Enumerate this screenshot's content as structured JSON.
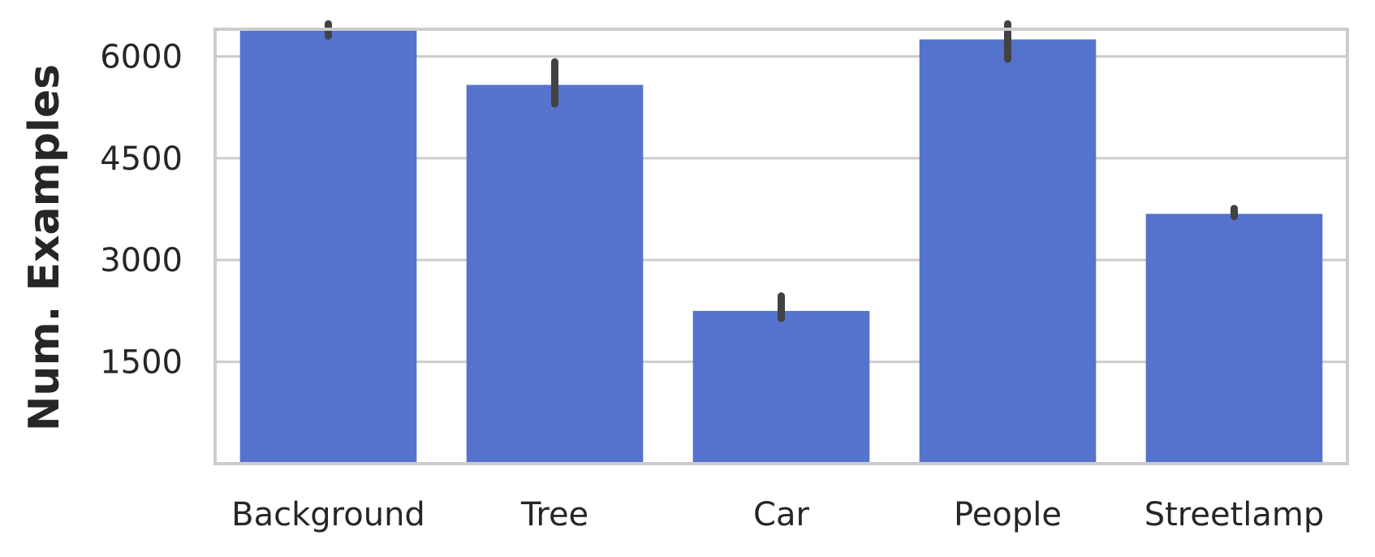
{
  "chart_data": {
    "type": "bar",
    "title": "",
    "xlabel": "",
    "ylabel": "Num.  Examples",
    "categories": [
      "Background",
      "Tree",
      "Car",
      "People",
      "Streetlamp"
    ],
    "values": [
      6400,
      5580,
      2250,
      6250,
      3680
    ],
    "error_bars": [
      [
        6300,
        6480
      ],
      [
        5300,
        5920
      ],
      [
        2140,
        2470
      ],
      [
        5960,
        6480
      ],
      [
        3640,
        3760
      ]
    ],
    "yticks": [
      1500,
      3000,
      4500,
      6000
    ],
    "ytick_labels": [
      "1500",
      "3000",
      "4500",
      "6000"
    ],
    "ylim": [
      0,
      6400
    ],
    "grid": true,
    "colors": {
      "bar": "#5573cd",
      "error": "#424242",
      "grid": "#cccccc",
      "frame": "#cccccc",
      "text": "#262626"
    }
  }
}
